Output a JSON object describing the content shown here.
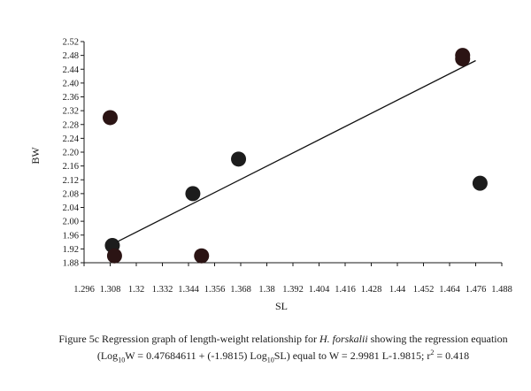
{
  "chart_data": {
    "type": "scatter",
    "xlabel": "SL",
    "ylabel": "BW",
    "xlim": [
      1.296,
      1.488
    ],
    "ylim": [
      1.88,
      2.52
    ],
    "x_ticks": [
      "1.296",
      "1.308",
      "1.32",
      "1.332",
      "1.344",
      "1.356",
      "1.368",
      "1.38",
      "1.392",
      "1.404",
      "1.416",
      "1.428",
      "1.44",
      "1.452",
      "1.464",
      "1.476",
      "1.488"
    ],
    "y_ticks": [
      "1.88",
      "1.92",
      "1.96",
      "2.00",
      "2.04",
      "2.08",
      "2.12",
      "2.16",
      "2.20",
      "2.24",
      "2.28",
      "2.32",
      "2.36",
      "2.40",
      "2.44",
      "2.48",
      "2.52"
    ],
    "points": [
      {
        "x": 1.308,
        "y": 2.3,
        "color": "#2b1414"
      },
      {
        "x": 1.309,
        "y": 1.93,
        "color": "#1c1c1c"
      },
      {
        "x": 1.31,
        "y": 1.9,
        "color": "#2b1414"
      },
      {
        "x": 1.346,
        "y": 2.08,
        "color": "#1c1c1c"
      },
      {
        "x": 1.35,
        "y": 1.9,
        "color": "#2b1414"
      },
      {
        "x": 1.367,
        "y": 2.18,
        "color": "#1c1c1c"
      },
      {
        "x": 1.47,
        "y": 2.47,
        "color": "#2b1414"
      },
      {
        "x": 1.47,
        "y": 2.48,
        "color": "#2b1414"
      },
      {
        "x": 1.478,
        "y": 2.11,
        "color": "#1c1c1c"
      }
    ],
    "trendline": {
      "x": [
        1.311,
        1.476
      ],
      "y": [
        1.94,
        2.465
      ]
    }
  },
  "caption": {
    "p1": "Figure 5c Regression graph of length-weight relationship for ",
    "species": "H. forskalii",
    "p2": " showing the regression equation (Log",
    "sub1": "10",
    "p3": "W = 0.47684611 + (-1.9815) Log",
    "sub2": "10",
    "p4": "SL) equal to W = 2.9981 L-1.9815; r",
    "sup": "2",
    "p5": " = 0.418"
  }
}
